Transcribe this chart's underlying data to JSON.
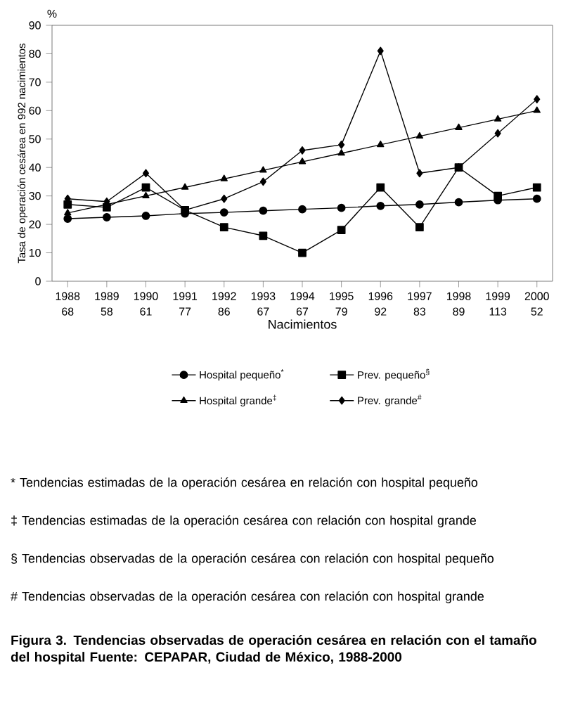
{
  "chart_data": {
    "type": "line",
    "title": "**Figura 3. Tendencias observadas de operación cesárea en relación con el tamaño del hospital Fuente: CEPAPAR, Ciudad de México, 1988-2000**",
    "xlabel": "Nacimientos",
    "ylabel": "Tasa de operación cesárea en 992 nacimientos",
    "categories": [
      "1988 68",
      "1989 58",
      "1990 61",
      "1991 77",
      "1992 86",
      "1993 67",
      "1994 67",
      "1995 79",
      "1996 92",
      "1997 83",
      "1998 89",
      "1999 113",
      "2000 52"
    ],
    "series": [
      {
        "name": "Hospital pequeño$^{*}$",
        "color": "#000000",
        "marker": "circle",
        "values": [
          22,
          22.5,
          23,
          23.8,
          24.2,
          24.8,
          25.3,
          25.8,
          26.5,
          27,
          27.8,
          28.5,
          29
        ]
      },
      {
        "name": "Prev. pequeño$^{§}$",
        "color": "#000000",
        "marker": "square",
        "values": [
          27,
          26,
          33,
          25,
          19,
          16,
          10,
          18,
          33,
          19,
          40,
          30,
          33
        ]
      },
      {
        "name": "Hospital grande$^{‡}$",
        "color": "#000000",
        "marker": "triangle",
        "values": [
          24,
          27,
          30,
          33,
          36,
          39,
          42,
          45,
          48,
          51,
          54,
          57,
          60
        ]
      },
      {
        "name": "Prev. grande$^{#}$",
        "color": "#000000",
        "marker": "diamond",
        "values": [
          29,
          28,
          38,
          25,
          29,
          35,
          46,
          48,
          81,
          38,
          40,
          52,
          64
        ]
      }
    ],
    "ylim": [
      0,
      90
    ],
    "yticks": [
      0,
      10,
      20,
      30,
      40,
      50,
      60,
      70,
      80,
      90
    ],
    "grid": false,
    "legend": "bottom",
    "line_style": "solid",
    "annotations": [
      "%",
      "* Tendencias estimadas de la operación cesárea en relación con hospital pequeño",
      "‡ Tendencias estimadas de la operación cesárea con relación con hospital grande",
      "§ Tendencias observadas de la operación cesárea con relación con hospital pequeño",
      "# Tendencias observadas de la operación cesárea con relación con hospital grande"
    ]
  }
}
